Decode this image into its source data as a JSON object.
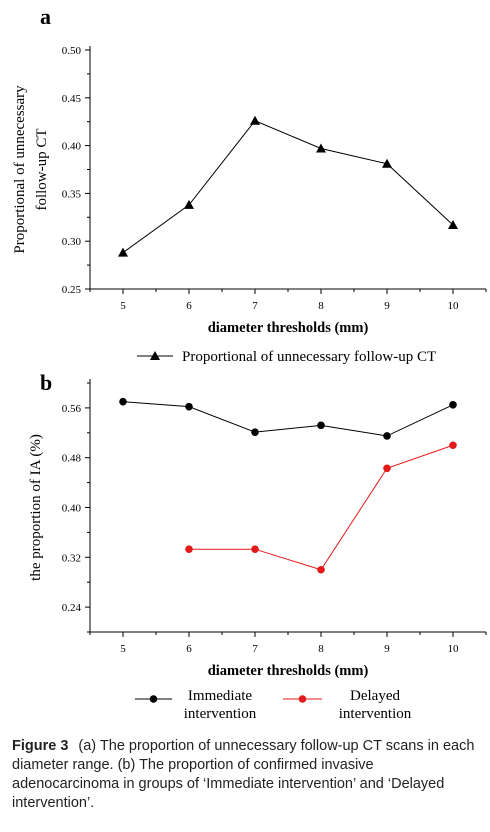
{
  "chart_data": [
    {
      "panel_label": "a",
      "type": "line",
      "x": [
        5,
        6,
        7,
        8,
        9,
        10
      ],
      "xlim": [
        4.5,
        10.5
      ],
      "ylim": [
        0.25,
        0.5
      ],
      "yticks": [
        "0.25",
        "0.30",
        "0.35",
        "0.40",
        "0.45",
        "0.50"
      ],
      "xticks": [
        "5",
        "6",
        "7",
        "8",
        "9",
        "10"
      ],
      "xlabel": "diameter thresholds (mm)",
      "ylabel_line1": "Proportional of unnecessary",
      "ylabel_line2": "follow-up CT",
      "series": [
        {
          "name": "Proportional of unnecessary follow-up CT",
          "color": "#000000",
          "marker": "triangle",
          "values": [
            0.288,
            0.338,
            0.426,
            0.397,
            0.381,
            0.317
          ]
        }
      ],
      "legend_position": "bottom"
    },
    {
      "panel_label": "b",
      "type": "line",
      "x": [
        5,
        6,
        7,
        8,
        9,
        10
      ],
      "xlim": [
        4.5,
        10.5
      ],
      "ylim": [
        0.2,
        0.6
      ],
      "yticks": [
        "0.24",
        "0.32",
        "0.40",
        "0.48",
        "0.56"
      ],
      "xticks": [
        "5",
        "6",
        "7",
        "8",
        "9",
        "10"
      ],
      "xlabel": "diameter thresholds (mm)",
      "ylabel": "the proportion of IA (%)",
      "series": [
        {
          "name_line1": "Immediate",
          "name_line2": "intervention",
          "color": "#000000",
          "marker": "circle",
          "values": [
            0.57,
            0.562,
            0.521,
            0.532,
            0.515,
            0.565
          ]
        },
        {
          "name_line1": "Delayed",
          "name_line2": "intervention",
          "color": "#e41a1a",
          "marker": "circle",
          "values": [
            null,
            0.333,
            0.333,
            0.3,
            0.463,
            0.5
          ]
        }
      ],
      "legend_position": "bottom"
    }
  ],
  "caption": {
    "label": "Figure 3",
    "text": "(a) The proportion of unnecessary follow-up CT scans in each diameter range. (b) The proportion of confirmed invasive adenocarcinoma in groups of ‘Immediate intervention’ and ‘Delayed intervention’."
  }
}
